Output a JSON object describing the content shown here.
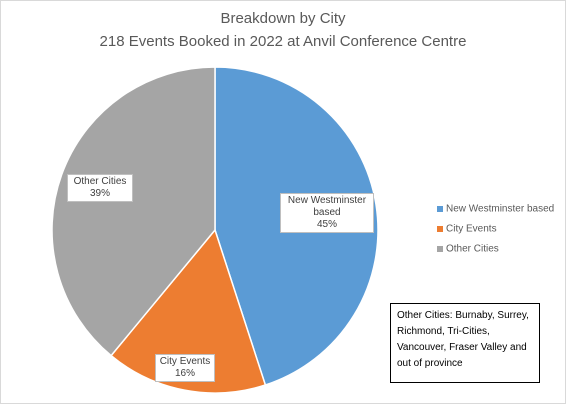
{
  "chart_data": {
    "type": "pie",
    "title": "Breakdown by City",
    "subtitle": "218 Events Booked in 2022 at Anvil Conference Centre",
    "categories": [
      "New Westminster based",
      "City Events",
      "Other Cities"
    ],
    "values": [
      45,
      16,
      39
    ],
    "value_labels": [
      "45%",
      "16%",
      "39%"
    ],
    "colors": [
      "#5b9bd5",
      "#ed7d31",
      "#a5a5a5"
    ],
    "legend": "right",
    "annotation": [
      "Other Cities: Burnaby, Surrey, Richmond, Tri-Cities, Vancouver, Fraser Valley and out of province"
    ]
  }
}
